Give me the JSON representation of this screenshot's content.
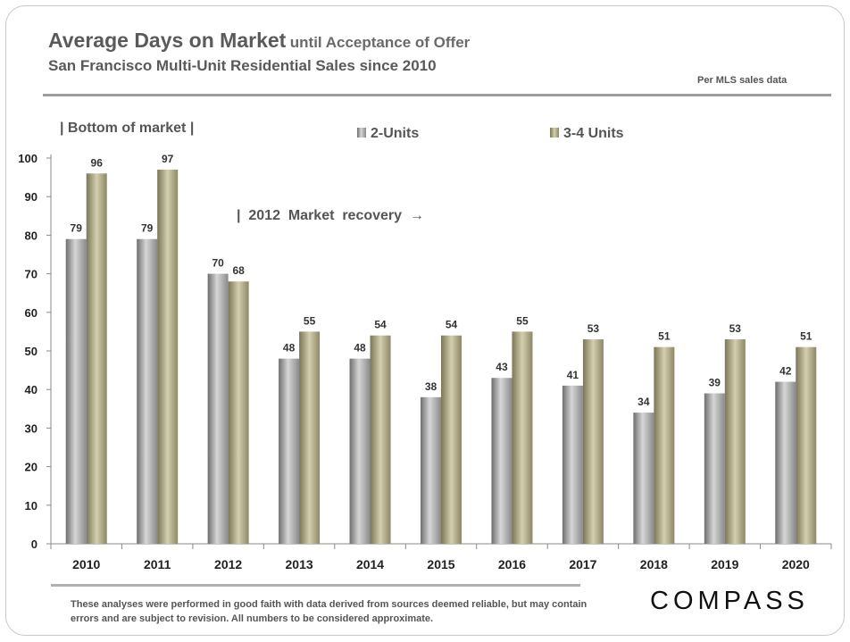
{
  "header": {
    "title_main": "Average Days on Market",
    "title_suffix": "until Acceptance of Offer",
    "subtitle": "San Francisco Multi-Unit Residential Sales since 2010",
    "source_note": "Per MLS sales data"
  },
  "footer": {
    "disclaimer": "These analyses were performed in good faith with data derived from sources deemed reliable, but may contain errors and are subject to revision. All numbers to be considered approximate.",
    "logo": "COMPASS"
  },
  "chart_data": {
    "type": "bar",
    "categories": [
      "2010",
      "2011",
      "2012",
      "2013",
      "2014",
      "2015",
      "2016",
      "2017",
      "2018",
      "2019",
      "2020"
    ],
    "series": [
      {
        "name": "2-Units",
        "values": [
          79,
          79,
          70,
          48,
          48,
          38,
          43,
          41,
          34,
          39,
          42
        ],
        "color": "#9a9a9a"
      },
      {
        "name": "3-4 Units",
        "values": [
          96,
          97,
          68,
          55,
          54,
          54,
          55,
          53,
          51,
          53,
          51
        ],
        "color": "#a8a27e"
      }
    ],
    "ylim": [
      0,
      100
    ],
    "yticks": [
      "0",
      "10",
      "20",
      "30",
      "40",
      "50",
      "60",
      "70",
      "80",
      "90",
      "100"
    ],
    "legend_position": "top",
    "grid": false,
    "annotations": [
      {
        "text": "| Bottom of market |"
      },
      {
        "text": "|  2012  Market  recovery  →"
      }
    ]
  }
}
